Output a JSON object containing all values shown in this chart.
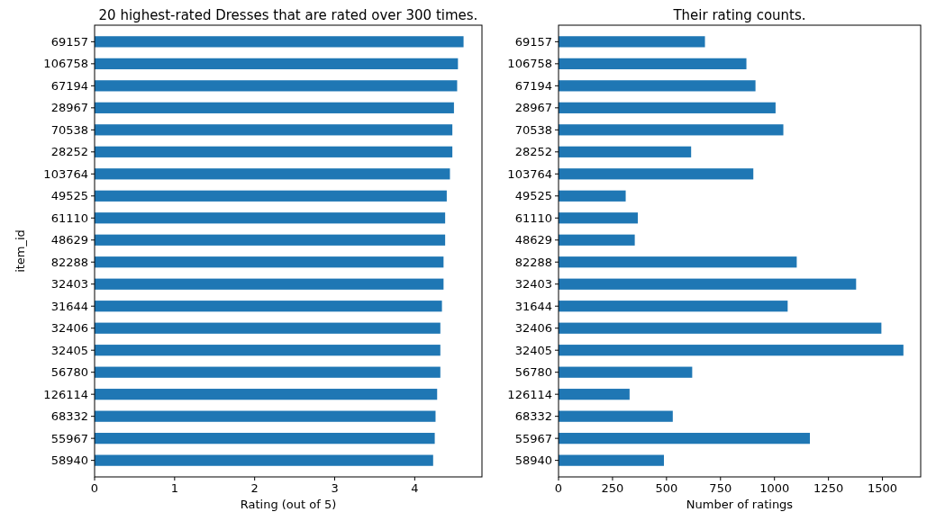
{
  "chart_data": [
    {
      "type": "bar",
      "orientation": "horizontal",
      "title": "20 highest-rated Dresses that are rated over 300 times.",
      "xlabel": "Rating (out of 5)",
      "ylabel": "item_id",
      "color": "#1f77b4",
      "categories": [
        "69157",
        "106758",
        "67194",
        "28967",
        "70538",
        "28252",
        "103764",
        "49525",
        "61110",
        "48629",
        "82288",
        "32403",
        "31644",
        "32406",
        "32405",
        "56780",
        "126114",
        "68332",
        "55967",
        "58940"
      ],
      "values": [
        4.61,
        4.54,
        4.53,
        4.49,
        4.47,
        4.47,
        4.44,
        4.4,
        4.38,
        4.38,
        4.36,
        4.36,
        4.34,
        4.32,
        4.32,
        4.32,
        4.28,
        4.26,
        4.25,
        4.23
      ],
      "xlim": [
        0,
        4.84
      ],
      "xticks": [
        0,
        1,
        2,
        3,
        4
      ]
    },
    {
      "type": "bar",
      "orientation": "horizontal",
      "title": "Their rating counts.",
      "xlabel": "Number of ratings",
      "color": "#1f77b4",
      "categories": [
        "69157",
        "106758",
        "67194",
        "28967",
        "70538",
        "28252",
        "103764",
        "49525",
        "61110",
        "48629",
        "82288",
        "32403",
        "31644",
        "32406",
        "32405",
        "56780",
        "126114",
        "68332",
        "55967",
        "58940"
      ],
      "values": [
        678,
        870,
        912,
        1005,
        1041,
        614,
        902,
        311,
        367,
        353,
        1103,
        1378,
        1061,
        1495,
        1597,
        619,
        329,
        529,
        1164,
        488
      ],
      "xlim": [
        0,
        1677
      ],
      "xticks": [
        0,
        250,
        500,
        750,
        1000,
        1250,
        1500
      ]
    }
  ]
}
